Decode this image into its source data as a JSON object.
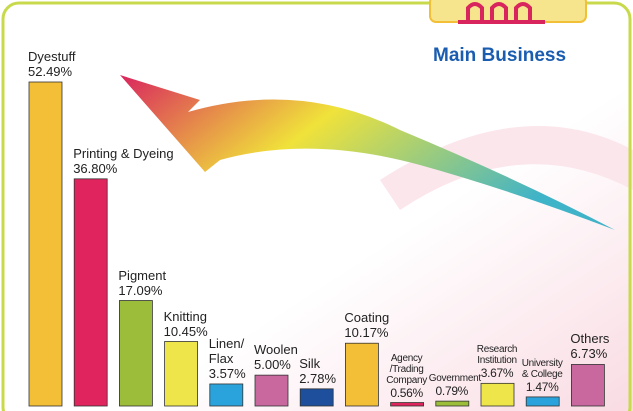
{
  "chart_data": {
    "type": "bar",
    "title": "Main Business",
    "categories": [
      "Dyestuff",
      "Printing & Dyeing",
      "Pigment",
      "Knitting",
      "Linen/ Flax",
      "Woolen",
      "Silk",
      "Coating",
      "Agency /Trading Company",
      "Government",
      "Research Institution",
      "University & College",
      "Others"
    ],
    "values": [
      52.49,
      36.8,
      17.09,
      10.45,
      3.57,
      5.0,
      2.78,
      10.17,
      0.56,
      0.79,
      3.67,
      1.47,
      6.73
    ],
    "value_labels": [
      "52.49%",
      "36.80%",
      "17.09%",
      "10.45%",
      "3.57%",
      "5.00%",
      "2.78%",
      "10.17%",
      "0.56%",
      "0.79%",
      "3.67%",
      "1.47%",
      "6.73%"
    ],
    "colors": [
      "#f2bf36",
      "#e0245e",
      "#9cbd3a",
      "#eee54a",
      "#2aa3dc",
      "#c9679f",
      "#1d4f9c",
      "#f2bf36",
      "#e0245e",
      "#9cbd3a",
      "#eee54a",
      "#2aa3dc",
      "#c9679f"
    ]
  }
}
